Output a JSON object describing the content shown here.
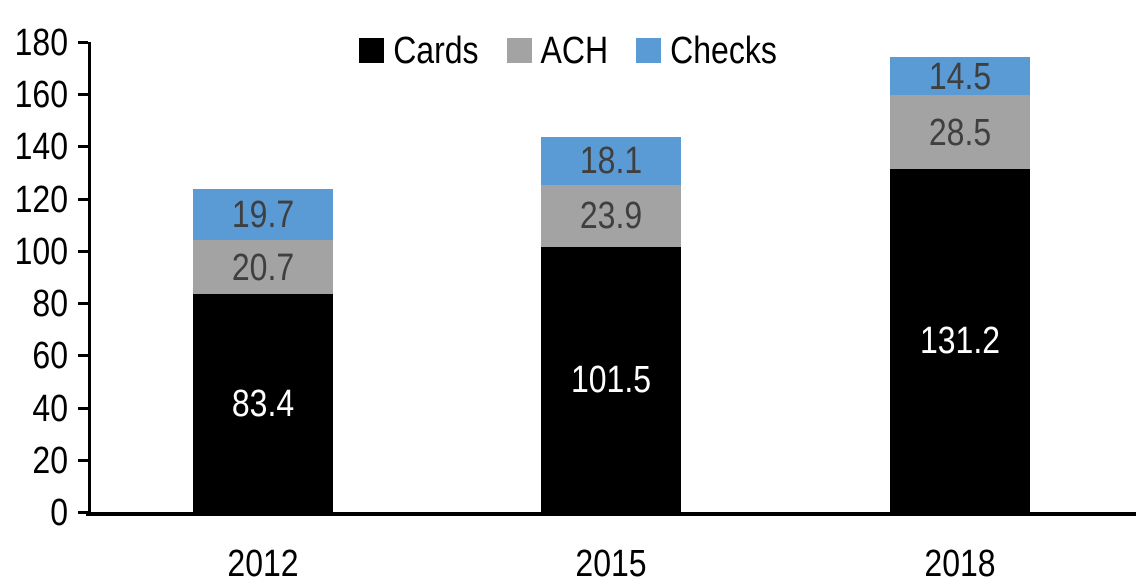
{
  "chart_data": {
    "type": "bar",
    "stacked": true,
    "title": "",
    "xlabel": "",
    "ylabel": "",
    "categories": [
      "2012",
      "2015",
      "2018"
    ],
    "series": [
      {
        "name": "Cards",
        "color": "#000000",
        "label_color": "#FFFFFF",
        "values": [
          83.4,
          101.5,
          131.2
        ]
      },
      {
        "name": "ACH",
        "color": "#A3A3A3",
        "label_color": "#3F3F3F",
        "values": [
          20.7,
          23.9,
          28.5
        ]
      },
      {
        "name": "Checks",
        "color": "#5B9BD5",
        "label_color": "#3F3F3F",
        "values": [
          19.7,
          18.1,
          14.5
        ]
      }
    ],
    "ylim": [
      0,
      180
    ],
    "yticks": [
      0,
      20,
      40,
      60,
      80,
      100,
      120,
      140,
      160,
      180
    ],
    "grid": false,
    "legend_position": "top",
    "value_decimals": 1
  }
}
